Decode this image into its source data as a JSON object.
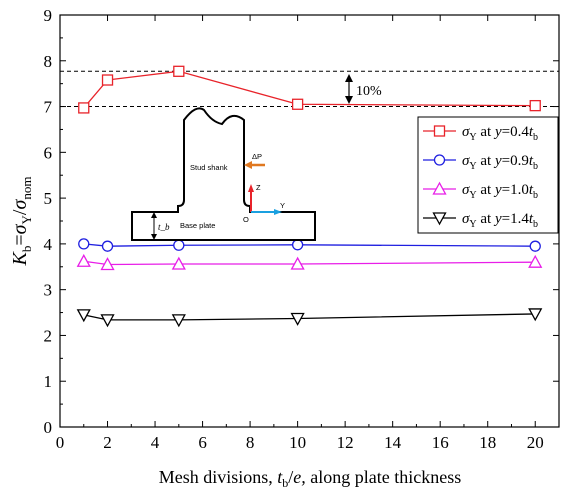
{
  "chart_data": {
    "type": "line",
    "xlabel": "Mesh divisions, t_b/e, along plate thickness",
    "ylabel": "K_b = σ_Y / σ_nom",
    "xlim": [
      0,
      21
    ],
    "ylim": [
      0,
      9
    ],
    "xticks": [
      0,
      2,
      4,
      6,
      8,
      10,
      12,
      14,
      16,
      18,
      20
    ],
    "yticks": [
      0,
      1,
      2,
      3,
      4,
      5,
      6,
      7,
      8,
      9
    ],
    "grid": false,
    "legend_position": "right",
    "x": [
      1,
      2,
      5,
      10,
      20
    ],
    "series": [
      {
        "name": "σY at y=0.4tb",
        "color": "#e8232a",
        "marker": "square",
        "values": [
          6.97,
          7.58,
          7.77,
          7.05,
          7.02
        ]
      },
      {
        "name": "σY at y=0.9tb",
        "color": "#1f1fe0",
        "marker": "circle",
        "values": [
          4.0,
          3.95,
          3.97,
          3.98,
          3.95
        ]
      },
      {
        "name": "σY at y=1.0tb",
        "color": "#e81ee8",
        "marker": "triangle-up",
        "values": [
          3.62,
          3.55,
          3.56,
          3.56,
          3.6
        ]
      },
      {
        "name": "σY at y=1.4tb",
        "color": "#000000",
        "marker": "triangle-down",
        "values": [
          2.45,
          2.34,
          2.34,
          2.37,
          2.47
        ]
      }
    ],
    "reference_lines": [
      7.0,
      7.77
    ],
    "annotations": [
      {
        "text": "10%"
      }
    ]
  },
  "inset": {
    "stud_label": "Stud shank",
    "base_label": "Base plate",
    "force_label": "ΔP",
    "z_label": "Z",
    "y_label": "Y",
    "origin_label": "O",
    "thickness_label": "t_b"
  },
  "colors": {
    "axis_z": "#e8232a",
    "axis_y": "#1aa0e0",
    "force": "#e07820"
  }
}
